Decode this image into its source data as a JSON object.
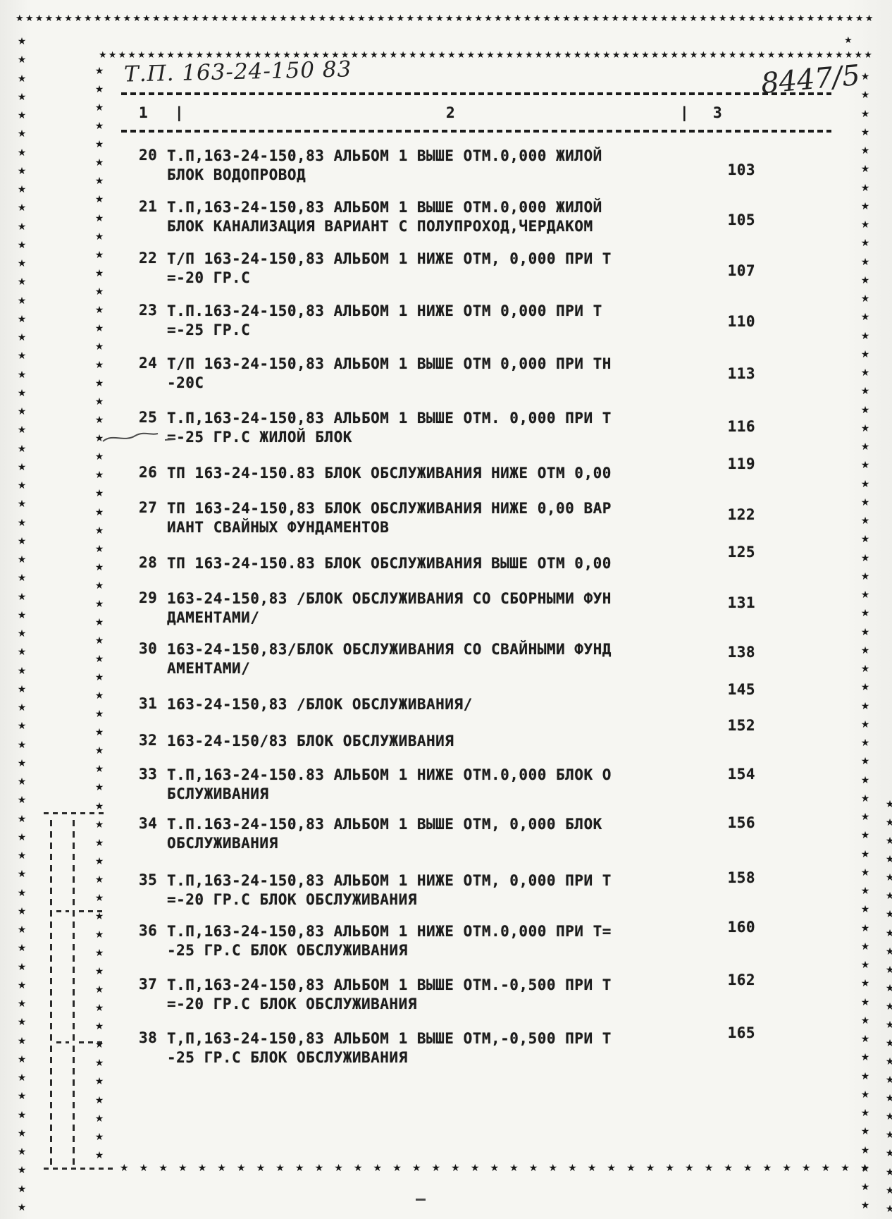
{
  "header": {
    "handwritten_title": "Т.П. 163-24-150 83",
    "handwritten_number": "8447/5",
    "col1": "1",
    "col2": "2",
    "col3": "3",
    "separator": "|"
  },
  "decorations": {
    "border_star": "★"
  },
  "toc": {
    "rows": [
      {
        "num": "20",
        "lines": [
          "Т.П,163-24-150,83 АЛЬБОМ 1 ВЫШЕ ОТМ.0,000 ЖИЛОЙ",
          "БЛОК ВОДОПРОВОД"
        ],
        "page": "103"
      },
      {
        "num": "21",
        "lines": [
          "Т.П,163-24-150,83 АЛЬБОМ 1 ВЫШЕ ОТМ.0,000 ЖИЛОЙ",
          "БЛОК КАНАЛИЗАЦИЯ ВАРИАНТ С ПОЛУПРОХОД,ЧЕРДАКОМ"
        ],
        "page": "105"
      },
      {
        "num": "22",
        "lines": [
          "Т/П 163-24-150,83 АЛЬБОМ 1 НИЖЕ ОТМ, 0,000 ПРИ Т",
          "=-20 ГР.С"
        ],
        "page": "107"
      },
      {
        "num": "23",
        "lines": [
          "Т.П.163-24-150,83 АЛЬБОМ 1 НИЖЕ ОТМ 0,000 ПРИ Т",
          "=-25 ГР.С"
        ],
        "page": "110"
      },
      {
        "num": "24",
        "lines": [
          "Т/П 163-24-150,83 АЛЬБОМ 1 ВЫШЕ ОТМ 0,000 ПРИ ТН",
          "-20С"
        ],
        "page": "113"
      },
      {
        "num": "25",
        "lines": [
          "Т.П,163-24-150,83 АЛЬБОМ 1 ВЫШЕ ОТМ. 0,000 ПРИ Т",
          "=-25 ГР.С ЖИЛОЙ БЛОК"
        ],
        "page": "116"
      },
      {
        "num": "26",
        "lines": [
          "ТП 163-24-150.83 БЛОК ОБСЛУЖИВАНИЯ НИЖЕ ОТМ 0,00"
        ],
        "page": "119"
      },
      {
        "num": "27",
        "lines": [
          "ТП 163-24-150,83 БЛОК ОБСЛУЖИВАНИЯ НИЖЕ 0,00 ВАР",
          "ИАНТ СВАЙНЫХ ФУНДАМЕНТОВ"
        ],
        "page": "122"
      },
      {
        "num": "28",
        "lines": [
          "ТП 163-24-150.83 БЛОК ОБСЛУЖИВАНИЯ ВЫШЕ ОТМ 0,00"
        ],
        "page": "125"
      },
      {
        "num": "29",
        "lines": [
          "163-24-150,83 /БЛОК ОБСЛУЖИВАНИЯ СО СБОРНЫМИ ФУН",
          "ДАМЕНТАМИ/"
        ],
        "page": "131"
      },
      {
        "num": "30",
        "lines": [
          "163-24-150,83/БЛОК ОБСЛУЖИВАНИЯ СО СВАЙНЫМИ ФУНД",
          "АМЕНТАМИ/"
        ],
        "page": "138"
      },
      {
        "num": "31",
        "lines": [
          "163-24-150,83 /БЛОК ОБСЛУЖИВАНИЯ/"
        ],
        "page": "145"
      },
      {
        "num": "32",
        "lines": [
          "163-24-150/83 БЛОК ОБСЛУЖИВАНИЯ"
        ],
        "page": "152"
      },
      {
        "num": "33",
        "lines": [
          "Т.П,163-24-150.83 АЛЬБОМ 1 НИЖЕ ОТМ.0,000 БЛОК О",
          "БСЛУЖИВАНИЯ"
        ],
        "page": "154"
      },
      {
        "num": "34",
        "lines": [
          "Т.П.163-24-150,83 АЛЬБОМ 1 ВЫШЕ ОТМ, 0,000 БЛОК",
          "ОБСЛУЖИВАНИЯ"
        ],
        "page": "156"
      },
      {
        "num": "35",
        "lines": [
          "Т.П,163-24-150,83 АЛЬБОМ 1 НИЖЕ ОТМ, 0,000 ПРИ Т",
          "=-20 ГР.С БЛОК ОБСЛУЖИВАНИЯ"
        ],
        "page": "158"
      },
      {
        "num": "36",
        "lines": [
          "Т.П,163-24-150,83 АЛЬБОМ 1 НИЖЕ ОТМ.0,000 ПРИ Т=",
          "-25 ГР.С БЛОК ОБСЛУЖИВАНИЯ"
        ],
        "page": "160"
      },
      {
        "num": "37",
        "lines": [
          "Т.П,163-24-150,83 АЛЬБОМ 1 ВЫШЕ ОТМ.-0,500 ПРИ Т",
          "=-20 ГР.С БЛОК ОБСЛУЖИВАНИЯ"
        ],
        "page": "162"
      },
      {
        "num": "38",
        "lines": [
          "Т,П,163-24-150,83 АЛЬБОМ 1 ВЫШЕ ОТМ,-0,500 ПРИ Т",
          "-25 ГР.С БЛОК ОБСЛУЖИВАНИЯ"
        ],
        "page": "165"
      }
    ]
  }
}
